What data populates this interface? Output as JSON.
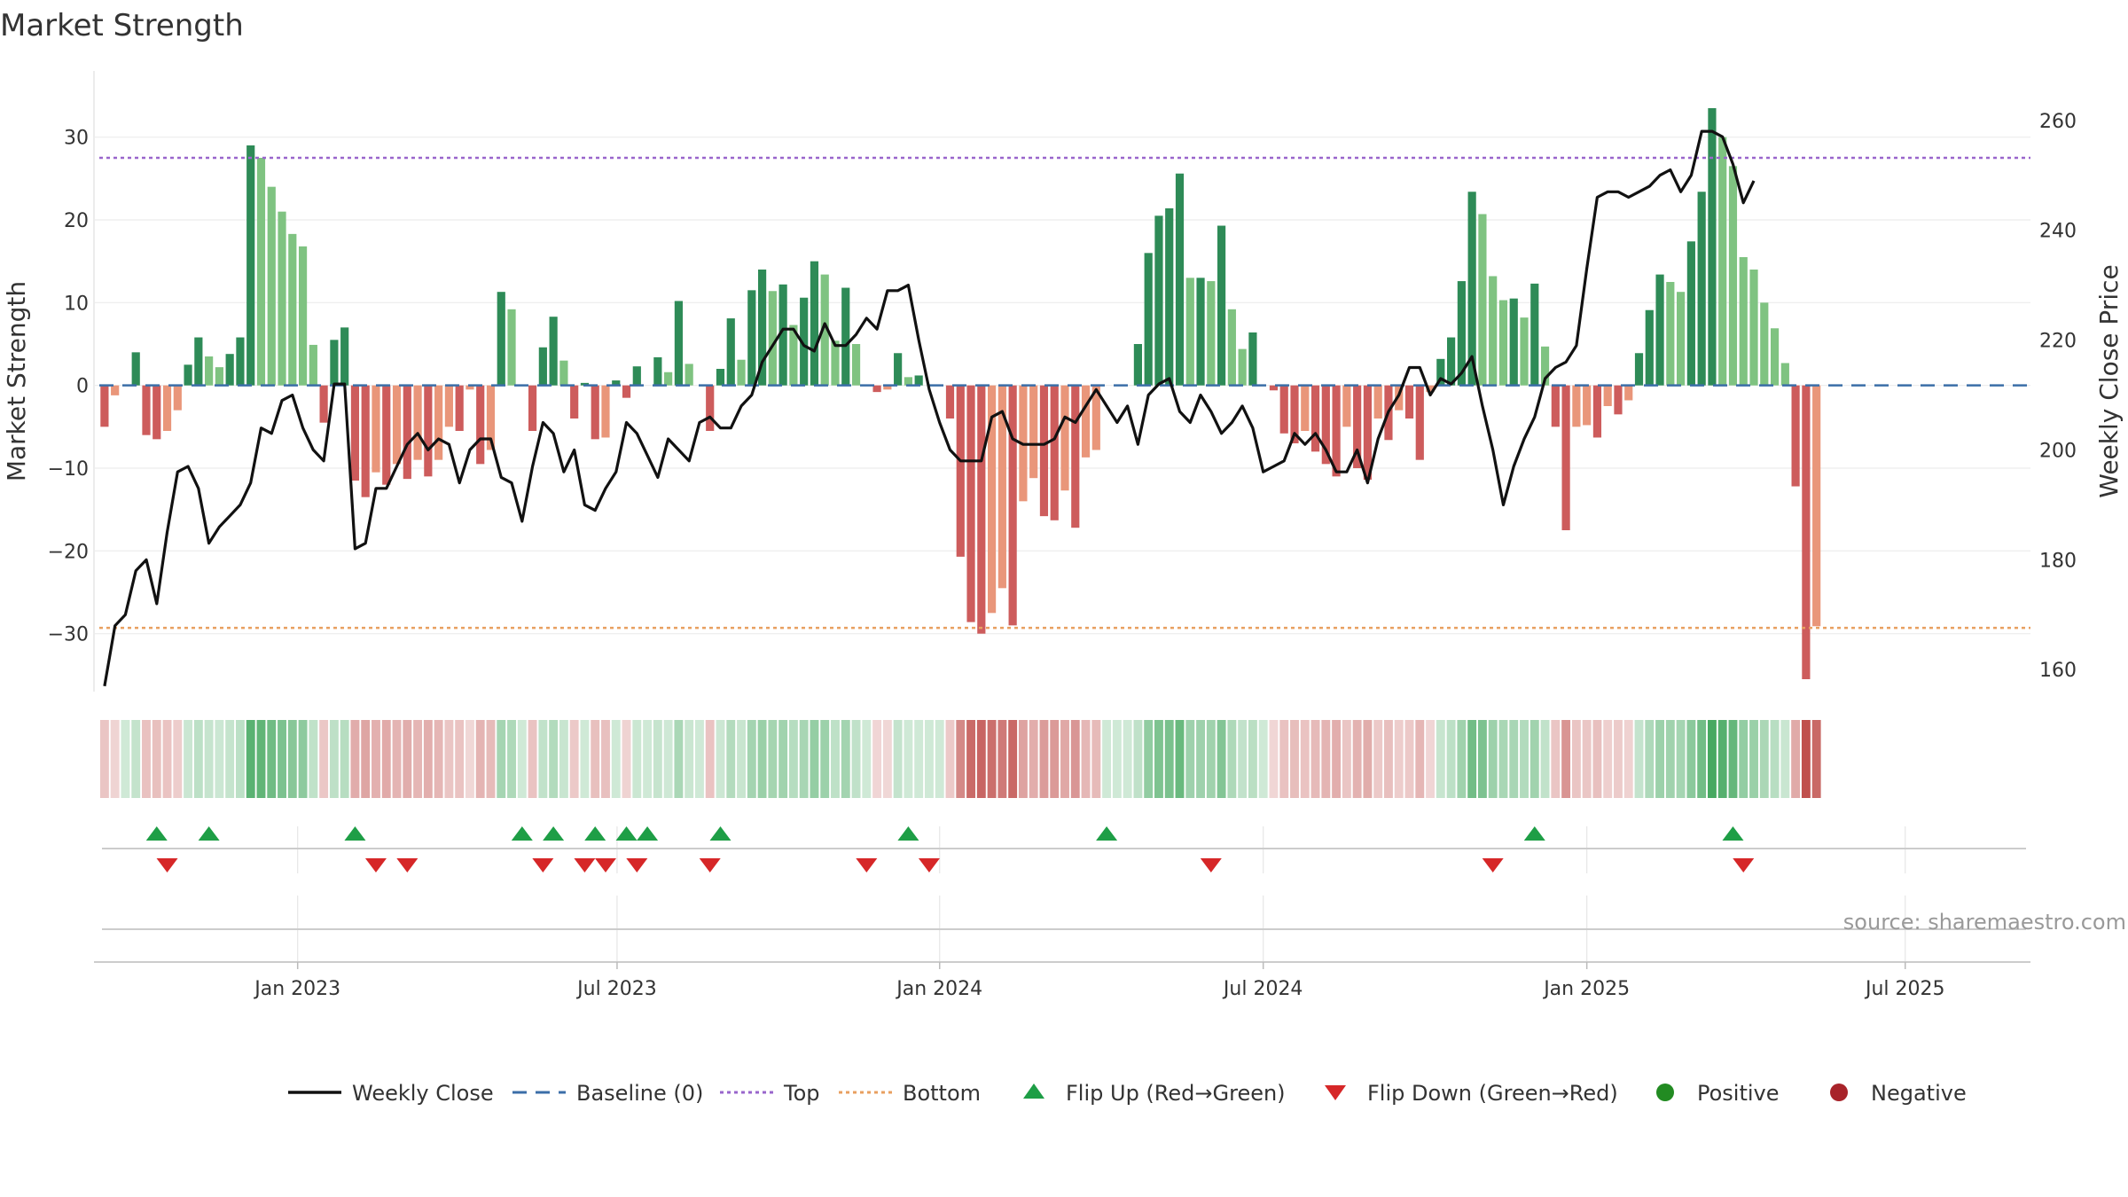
{
  "chart_data": {
    "type": "bar",
    "title": "Market Strength",
    "ylabel_left": "Market Strength",
    "ylabel_right": "Weekly Close Price",
    "ylim_left": [
      -37,
      38
    ],
    "ylim_right": [
      156,
      269
    ],
    "yticks_left": [
      30,
      20,
      10,
      0,
      -10,
      -20,
      -30
    ],
    "yticks_left_labels": [
      "30",
      "20",
      "10",
      "0",
      "−10",
      "−20",
      "−30"
    ],
    "yticks_right": [
      260,
      240,
      220,
      200,
      180,
      160
    ],
    "yticks_right_labels": [
      "260",
      "240",
      "220",
      "200",
      "180",
      "160"
    ],
    "top_level": 27.5,
    "bottom_level": -29.3,
    "x_range_weeks": [
      -19,
      166
    ],
    "xticks": [
      {
        "week": 0,
        "label": "Jan 2023"
      },
      {
        "week": 30.6,
        "label": "Jul 2023"
      },
      {
        "week": 61.5,
        "label": "Jan 2024"
      },
      {
        "week": 92.5,
        "label": "Jul 2024"
      },
      {
        "week": 123.5,
        "label": "Jan 2025"
      },
      {
        "week": 154,
        "label": "Jul 2025"
      }
    ],
    "strength": [
      -5,
      -1.2,
      0,
      4,
      -6,
      -6.5,
      -5.5,
      -3,
      2.5,
      5.8,
      3.5,
      2.2,
      3.8,
      5.8,
      29,
      27.5,
      24,
      21,
      18.3,
      16.8,
      4.9,
      -4.5,
      5.5,
      7,
      -11.5,
      -13.5,
      -10.5,
      -12,
      -9.5,
      -11.3,
      -9,
      -11,
      -9,
      -5,
      -5.5,
      -0.5,
      -9.5,
      -7.8,
      11.3,
      9.2,
      0,
      -5.5,
      4.6,
      8.3,
      3,
      -4,
      0.3,
      -6.5,
      -6.3,
      0.6,
      -1.5,
      2.3,
      0,
      3.4,
      1.6,
      10.2,
      2.6,
      0,
      -5.5,
      2,
      8.1,
      3.1,
      11.5,
      14,
      11.4,
      12.2,
      7.3,
      10.6,
      15,
      13.4,
      5.4,
      11.8,
      5,
      0,
      -0.8,
      -0.5,
      3.9,
      1,
      1.2,
      0,
      0,
      -4,
      -20.7,
      -28.6,
      -30,
      -27.5,
      -24.5,
      -29,
      -14,
      -11.2,
      -15.8,
      -16.3,
      -12.7,
      -17.2,
      -8.7,
      -7.8,
      0,
      0,
      0,
      5,
      16,
      20.5,
      21.4,
      25.6,
      13,
      13,
      12.6,
      19.3,
      9.2,
      4.4,
      6.4,
      0,
      -0.6,
      -5.8,
      -7,
      -5.5,
      -8,
      -9.5,
      -11,
      -5,
      -10,
      -11.4,
      -4,
      -6.6,
      -3,
      -4,
      -9,
      -0.8,
      3.2,
      5.8,
      12.6,
      23.4,
      20.7,
      13.2,
      10.3,
      10.5,
      8.2,
      12.3,
      4.7,
      -5,
      -17.5,
      -5,
      -4.8,
      -6.3,
      -2.5,
      -3.5,
      -1.8,
      3.9,
      9.1,
      13.4,
      12.5,
      11.3,
      17.4,
      23.4,
      33.5,
      30,
      26.5,
      15.5,
      14,
      10,
      6.9,
      2.7,
      -12.2,
      -35.5,
      -29.1
    ],
    "close": [
      157,
      168,
      170,
      178,
      180,
      172,
      185,
      196,
      197,
      193,
      183,
      186,
      188,
      190,
      194,
      204,
      203,
      209,
      210,
      204,
      200,
      198,
      212,
      212,
      182,
      183,
      193,
      193,
      197,
      201,
      203,
      200,
      202,
      201,
      194,
      200,
      202,
      202,
      195,
      194,
      187,
      197,
      205,
      203,
      196,
      200,
      190,
      189,
      193,
      196,
      205,
      203,
      199,
      195,
      202,
      200,
      198,
      205,
      206,
      204,
      204,
      208,
      210,
      216,
      219,
      222,
      222,
      219,
      218,
      223,
      219,
      219,
      221,
      224,
      222,
      229,
      229,
      230,
      220,
      211,
      205,
      200,
      198,
      198,
      198,
      206,
      207,
      202,
      201,
      201,
      201,
      202,
      206,
      205,
      208,
      211,
      208,
      205,
      208,
      201,
      210,
      212,
      213,
      207,
      205,
      210,
      207,
      203,
      205,
      208,
      204,
      196,
      197,
      198,
      203,
      201,
      203,
      200,
      196,
      196,
      200,
      194,
      202,
      207,
      210,
      215,
      215,
      210,
      213,
      212,
      214,
      217,
      208,
      200,
      190,
      197,
      202,
      206,
      213,
      215,
      216,
      219,
      233,
      246,
      247,
      247,
      246,
      247,
      248,
      250,
      251,
      247,
      250,
      258,
      258,
      257,
      252,
      245,
      249
    ],
    "flip_up_weeks": [
      -13.5,
      -8.5,
      5.5,
      21.5,
      24.5,
      28.5,
      31.5,
      33.5,
      40.5,
      58.5,
      77.5,
      118.5,
      137.5
    ],
    "flip_down_weeks": [
      -12.5,
      7.5,
      10.5,
      23.5,
      27.5,
      29.5,
      32.5,
      39.5,
      54.5,
      60.5,
      87.5,
      114.5,
      138.5
    ],
    "legend": [
      {
        "label": "Weekly Close",
        "kind": "line",
        "color": "#111111"
      },
      {
        "label": "Baseline (0)",
        "kind": "dashed",
        "color": "#3b6ea8"
      },
      {
        "label": "Top",
        "kind": "dotted",
        "color": "#9966cc"
      },
      {
        "label": "Bottom",
        "kind": "dotted",
        "color": "#e8a060"
      },
      {
        "label": "Flip Up (Red→Green)",
        "kind": "up",
        "color": "#1e9e46"
      },
      {
        "label": "Flip Down (Green→Red)",
        "kind": "down",
        "color": "#d62728"
      },
      {
        "label": "Positive",
        "kind": "dot",
        "color": "#228b22"
      },
      {
        "label": "Negative",
        "kind": "dot",
        "color": "#a8232a"
      }
    ],
    "source": "source: sharemaestro.com",
    "colors": {
      "pos_strong": "#2e8b57",
      "pos_weak": "#7fc381",
      "neg_strong": "#cd5c5c",
      "neg_weak": "#e9967a",
      "line": "#111111",
      "top": "#9966cc",
      "bottom": "#e8a060",
      "baseline": "#3b6ea8",
      "up": "#1e9e46",
      "down": "#d62728"
    }
  }
}
